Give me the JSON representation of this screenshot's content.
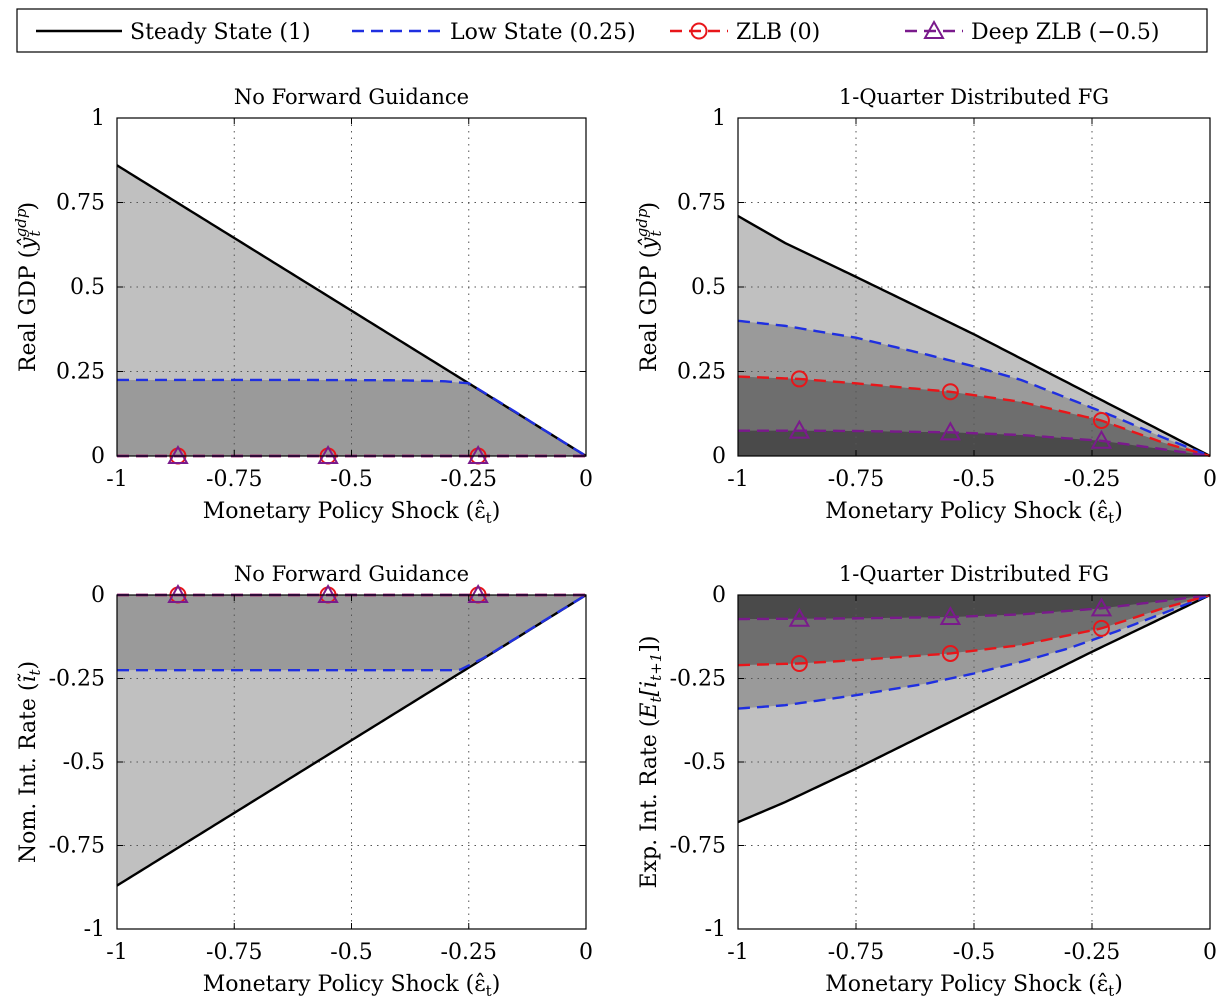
{
  "legend": {
    "placement": "top",
    "entries": [
      {
        "label": "Steady State (1)",
        "color": "#000000",
        "dash": "solid",
        "marker": "none"
      },
      {
        "label": "Low State (0.25)",
        "color": "#1f2fe0",
        "dash": "dashed",
        "marker": "none"
      },
      {
        "label": "ZLB (0)",
        "color": "#e8161a",
        "dash": "dashed",
        "marker": "circle"
      },
      {
        "label": "Deep ZLB (−0.5)",
        "color": "#7a1a8c",
        "dash": "dashed",
        "marker": "triangle"
      }
    ]
  },
  "fill_colors": [
    "#c0c0c0",
    "#9a9a9a",
    "#6e6e6e",
    "#4a4a4a"
  ],
  "chart_data": [
    {
      "type": "area",
      "title": "No Forward Guidance",
      "xlabel": "Monetary Policy Shock (ε̂",
      "xlabel_sub": "t",
      "ylabel_main": "Real GDP (",
      "ylabel_var": "ŷ",
      "ylabel_sup": "gdp",
      "ylabel_sub": "t",
      "xlim": [
        -1,
        0
      ],
      "ylim": [
        0,
        1
      ],
      "xticks": [
        -1,
        -0.75,
        -0.5,
        -0.25,
        0
      ],
      "xtick_labels": [
        "-1",
        "-0.75",
        "-0.5",
        "-0.25",
        "0"
      ],
      "yticks": [
        0,
        0.25,
        0.5,
        0.75,
        1
      ],
      "ytick_labels": [
        "0",
        "0.25",
        "0.5",
        "0.75",
        "1"
      ],
      "grid": true,
      "markers_x": [
        -0.87,
        -0.55,
        -0.23
      ],
      "series": [
        {
          "name": "Steady State (1)",
          "x": [
            -1,
            0
          ],
          "y": [
            0.86,
            0
          ]
        },
        {
          "name": "Low State (0.25)",
          "x": [
            -1,
            -0.6,
            -0.4,
            -0.3,
            -0.25,
            -0.22,
            -0.15,
            -0.1,
            0
          ],
          "y": [
            0.225,
            0.225,
            0.224,
            0.221,
            0.215,
            0.19,
            0.13,
            0.086,
            0
          ]
        },
        {
          "name": "ZLB (0)",
          "x": [
            -1,
            0
          ],
          "y": [
            0,
            0
          ]
        },
        {
          "name": "Deep ZLB (−0.5)",
          "x": [
            -1,
            0
          ],
          "y": [
            0,
            0
          ]
        }
      ]
    },
    {
      "type": "area",
      "title": "1-Quarter Distributed FG",
      "xlabel": "Monetary Policy Shock (ε̂",
      "xlabel_sub": "t",
      "ylabel_main": "Real GDP (",
      "ylabel_var": "ŷ",
      "ylabel_sup": "gdp",
      "ylabel_sub": "t",
      "xlim": [
        -1,
        0
      ],
      "ylim": [
        0,
        1
      ],
      "xticks": [
        -1,
        -0.75,
        -0.5,
        -0.25,
        0
      ],
      "xtick_labels": [
        "-1",
        "-0.75",
        "-0.5",
        "-0.25",
        "0"
      ],
      "yticks": [
        0,
        0.25,
        0.5,
        0.75,
        1
      ],
      "ytick_labels": [
        "0",
        "0.25",
        "0.5",
        "0.75",
        "1"
      ],
      "grid": true,
      "markers_x": [
        -0.87,
        -0.55,
        -0.23
      ],
      "series": [
        {
          "name": "Steady State (1)",
          "x": [
            -1,
            -0.9,
            -0.75,
            -0.5,
            -0.25,
            0
          ],
          "y": [
            0.71,
            0.63,
            0.53,
            0.36,
            0.18,
            0
          ]
        },
        {
          "name": "Low State (0.25)",
          "x": [
            -1,
            -0.9,
            -0.75,
            -0.6,
            -0.5,
            -0.4,
            -0.3,
            -0.2,
            -0.1,
            0
          ],
          "y": [
            0.4,
            0.385,
            0.35,
            0.3,
            0.265,
            0.225,
            0.17,
            0.115,
            0.055,
            0
          ]
        },
        {
          "name": "ZLB (0)",
          "x": [
            -1,
            -0.87,
            -0.75,
            -0.55,
            -0.4,
            -0.23,
            -0.1,
            0
          ],
          "y": [
            0.235,
            0.228,
            0.215,
            0.19,
            0.16,
            0.105,
            0.04,
            0
          ]
        },
        {
          "name": "Deep ZLB (−0.5)",
          "x": [
            -1,
            -0.87,
            -0.75,
            -0.55,
            -0.4,
            -0.23,
            -0.1,
            0
          ],
          "y": [
            0.075,
            0.075,
            0.074,
            0.07,
            0.062,
            0.045,
            0.02,
            0
          ]
        }
      ]
    },
    {
      "type": "area",
      "title": "No Forward Guidance",
      "xlabel": "Monetary Policy Shock (ε̂",
      "xlabel_sub": "t",
      "ylabel_main": "Nom. Int. Rate (",
      "ylabel_var": "ĩ",
      "ylabel_sup": "",
      "ylabel_sub": "t",
      "xlim": [
        -1,
        0
      ],
      "ylim": [
        -1,
        0
      ],
      "xticks": [
        -1,
        -0.75,
        -0.5,
        -0.25,
        0
      ],
      "xtick_labels": [
        "-1",
        "-0.75",
        "-0.5",
        "-0.25",
        "0"
      ],
      "yticks": [
        -1,
        -0.75,
        -0.5,
        -0.25,
        0
      ],
      "ytick_labels": [
        "-1",
        "-0.75",
        "-0.5",
        "-0.25",
        "0"
      ],
      "grid": true,
      "markers_x": [
        -0.87,
        -0.55,
        -0.23
      ],
      "series": [
        {
          "name": "Steady State (1)",
          "x": [
            -1,
            0
          ],
          "y": [
            -0.87,
            0
          ]
        },
        {
          "name": "Low State (0.25)",
          "x": [
            -1,
            -0.27,
            -0.22,
            -0.15,
            -0.1,
            0
          ],
          "y": [
            -0.225,
            -0.225,
            -0.19,
            -0.13,
            -0.086,
            0
          ]
        },
        {
          "name": "ZLB (0)",
          "x": [
            -1,
            0
          ],
          "y": [
            0,
            0
          ]
        },
        {
          "name": "Deep ZLB (−0.5)",
          "x": [
            -1,
            0
          ],
          "y": [
            0,
            0
          ]
        }
      ]
    },
    {
      "type": "area",
      "title": "1-Quarter Distributed FG",
      "xlabel": "Monetary Policy Shock (ε̂",
      "xlabel_sub": "t",
      "ylabel_main": "Exp. Int. Rate (",
      "ylabel_var": "E",
      "ylabel_sup": "",
      "ylabel_sub": "t",
      "ylabel_tail": "[i",
      "ylabel_tail_sub": "t+1",
      "xlim": [
        -1,
        0
      ],
      "ylim": [
        -1,
        0
      ],
      "xticks": [
        -1,
        -0.75,
        -0.5,
        -0.25,
        0
      ],
      "xtick_labels": [
        "-1",
        "-0.75",
        "-0.5",
        "-0.25",
        "0"
      ],
      "yticks": [
        -1,
        -0.75,
        -0.5,
        -0.25,
        0
      ],
      "ytick_labels": [
        "-1",
        "-0.75",
        "-0.5",
        "-0.25",
        "0"
      ],
      "grid": true,
      "markers_x": [
        -0.87,
        -0.55,
        -0.23
      ],
      "series": [
        {
          "name": "Steady State (1)",
          "x": [
            -1,
            -0.9,
            -0.75,
            -0.5,
            -0.25,
            0
          ],
          "y": [
            -0.68,
            -0.62,
            -0.52,
            -0.345,
            -0.17,
            0
          ]
        },
        {
          "name": "Low State (0.25)",
          "x": [
            -1,
            -0.9,
            -0.75,
            -0.6,
            -0.5,
            -0.4,
            -0.3,
            -0.2,
            -0.1,
            0
          ],
          "y": [
            -0.34,
            -0.33,
            -0.3,
            -0.265,
            -0.235,
            -0.2,
            -0.16,
            -0.11,
            -0.055,
            0
          ]
        },
        {
          "name": "ZLB (0)",
          "x": [
            -1,
            -0.87,
            -0.75,
            -0.55,
            -0.4,
            -0.23,
            -0.1,
            0
          ],
          "y": [
            -0.21,
            -0.205,
            -0.195,
            -0.175,
            -0.15,
            -0.1,
            -0.04,
            0
          ]
        },
        {
          "name": "Deep ZLB (−0.5)",
          "x": [
            -1,
            -0.87,
            -0.75,
            -0.55,
            -0.4,
            -0.23,
            -0.1,
            0
          ],
          "y": [
            -0.072,
            -0.071,
            -0.07,
            -0.066,
            -0.058,
            -0.04,
            -0.018,
            0
          ]
        }
      ]
    }
  ]
}
